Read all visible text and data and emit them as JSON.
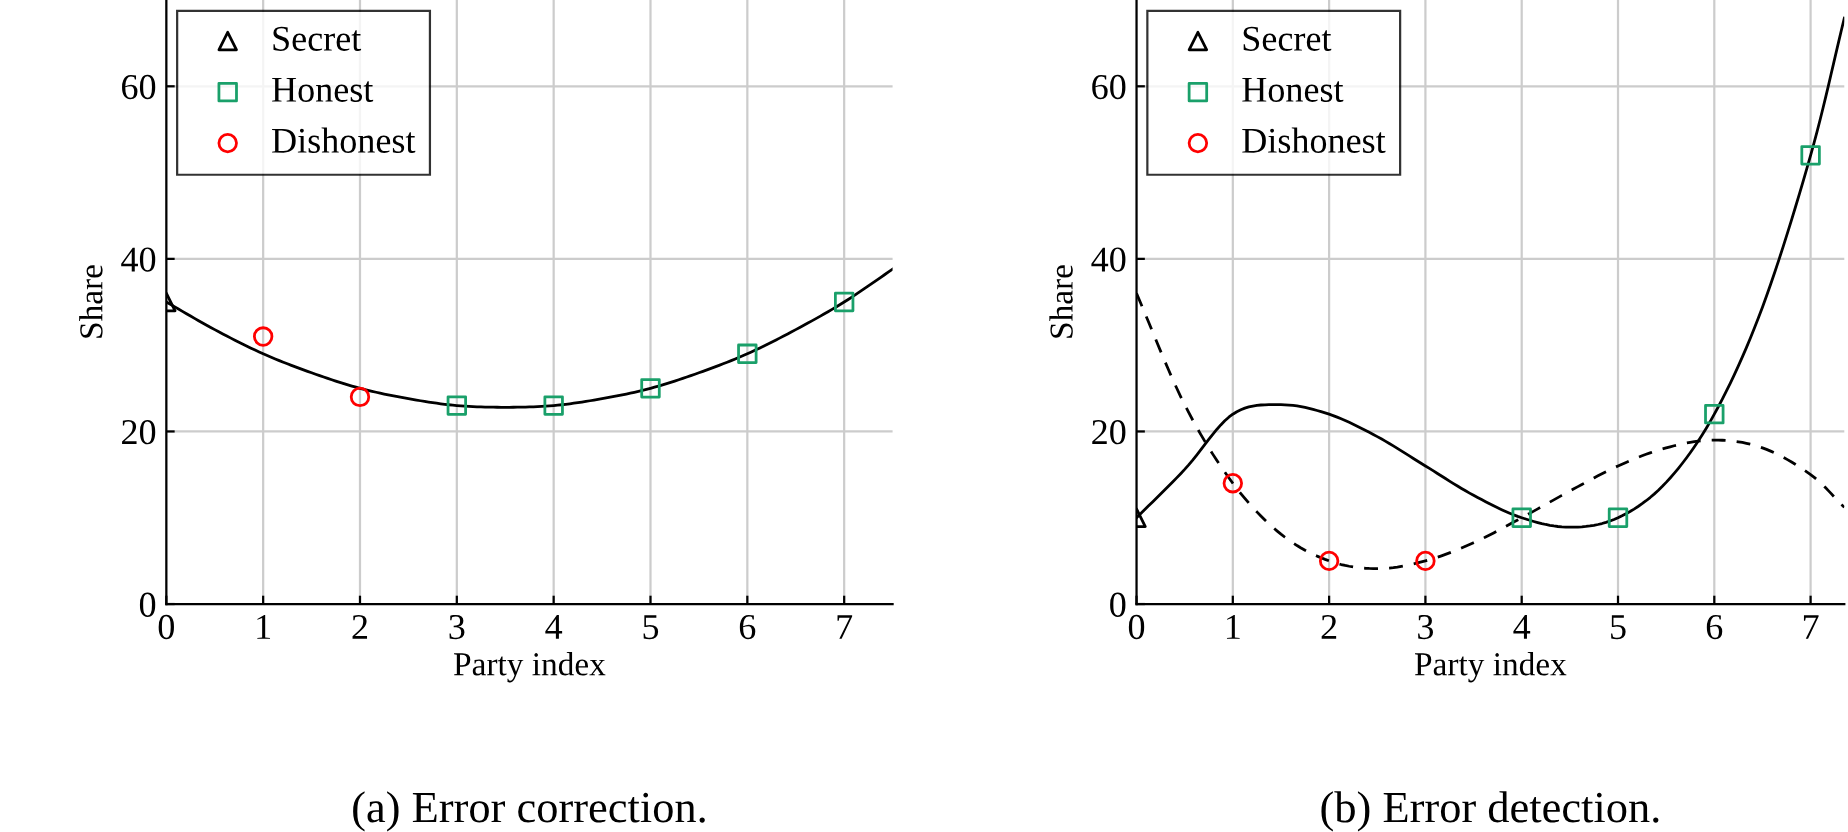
{
  "chart_data": [
    {
      "type": "scatter",
      "xlabel": "Party index",
      "ylabel": "Share",
      "annotations": [
        "(a) Error correction."
      ],
      "xlim": [
        0,
        7.5
      ],
      "ylim": [
        0,
        70
      ],
      "xticks": [
        0,
        1,
        2,
        3,
        4,
        5,
        6,
        7
      ],
      "yticks": [
        0,
        20,
        40,
        60
      ],
      "grid": true,
      "legend": "top left",
      "series": [
        {
          "type": "line",
          "color": "#000000",
          "marker": "none",
          "line_style": "solid",
          "x": [
            0,
            0.5,
            1,
            1.5,
            2,
            2.5,
            3,
            3.5,
            4,
            4.5,
            5,
            5.5,
            6,
            6.5,
            7,
            7.5
          ],
          "values": [
            35,
            31.8,
            29,
            26.8,
            25,
            23.8,
            23,
            22.8,
            23,
            23.8,
            25,
            26.8,
            29,
            31.8,
            35,
            38.8
          ]
        },
        {
          "name": "Secret",
          "color": "#000000",
          "marker": "triangle",
          "x": [
            0
          ],
          "values": [
            35
          ]
        },
        {
          "name": "Honest",
          "color": "#1aa06a",
          "marker": "square",
          "x": [
            3,
            4,
            5,
            6,
            7
          ],
          "values": [
            23,
            23,
            25,
            29,
            35
          ]
        },
        {
          "name": "Dishonest",
          "color": "#ff0000",
          "marker": "circle",
          "x": [
            1,
            2
          ],
          "values": [
            31,
            24
          ]
        }
      ]
    },
    {
      "type": "scatter",
      "xlabel": "Party index",
      "ylabel": "Share",
      "annotations": [
        "(b) Error detection."
      ],
      "xlim": [
        0,
        7.35
      ],
      "ylim": [
        0,
        70
      ],
      "xticks": [
        0,
        1,
        2,
        3,
        4,
        5,
        6,
        7
      ],
      "yticks": [
        0,
        20,
        40,
        60
      ],
      "grid": true,
      "legend": "top left",
      "series": [
        {
          "type": "line",
          "color": "#000000",
          "marker": "none",
          "line_style": "solid",
          "x": [
            0,
            0.5,
            1,
            1.5,
            2,
            2.5,
            3,
            3.5,
            4,
            4.5,
            5,
            5.5,
            6,
            6.5,
            7,
            7.35
          ],
          "values": [
            10,
            15.6,
            22,
            23.1,
            22,
            19.4,
            16,
            12.6,
            10,
            8.9,
            10,
            14.1,
            22,
            34.4,
            52,
            67.9
          ]
        },
        {
          "type": "line",
          "color": "#000000",
          "marker": "none",
          "line_style": "dashed",
          "x": [
            0,
            0.5,
            1,
            1.5,
            2,
            2.5,
            3,
            3.5,
            4,
            4.5,
            5,
            5.5,
            6,
            6.5,
            7,
            7.35
          ],
          "values": [
            36,
            23.1,
            14,
            8.1,
            5,
            4.1,
            5,
            7.1,
            10,
            13.1,
            16,
            18.1,
            19,
            18.1,
            15,
            11.2
          ]
        },
        {
          "name": "Secret",
          "color": "#000000",
          "marker": "triangle",
          "x": [
            0
          ],
          "values": [
            10
          ]
        },
        {
          "name": "Honest",
          "color": "#1aa06a",
          "marker": "square",
          "x": [
            4,
            5,
            6,
            7
          ],
          "values": [
            10,
            10,
            22,
            52
          ]
        },
        {
          "name": "Dishonest",
          "color": "#ff0000",
          "marker": "circle",
          "x": [
            1,
            2,
            3
          ],
          "values": [
            14,
            5,
            5
          ]
        }
      ]
    }
  ]
}
